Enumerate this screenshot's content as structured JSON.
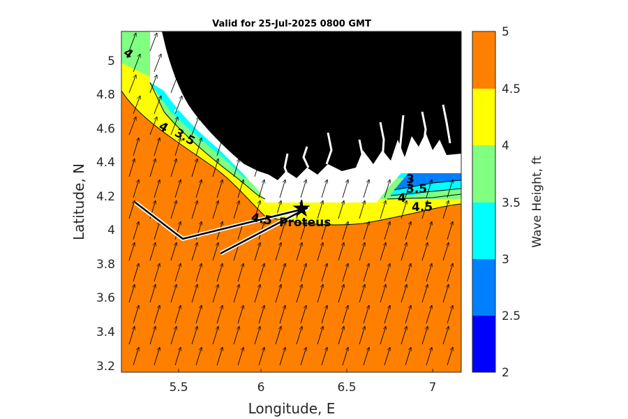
{
  "title": "Valid for 25-Jul-2025 0800 GMT",
  "xlabel": "Longitude, E",
  "ylabel": "Latitude, N",
  "colorbar_label": "Wave Height, ft",
  "x_ticks": [
    "5.5",
    "6",
    "6.5",
    "7"
  ],
  "y_ticks": [
    "5",
    "4.8",
    "4.6",
    "4.4",
    "4.2",
    "4",
    "3.8",
    "3.6",
    "3.4",
    "3.2"
  ],
  "colorbar_ticks": [
    "5",
    "4.5",
    "4",
    "3.5",
    "3",
    "2.5",
    "2"
  ],
  "colorbar_colors": [
    "#0000ff",
    "#0080ff",
    "#00ffff",
    "#80ff80",
    "#ffff00",
    "#ff8000"
  ],
  "station_label": "Proteus",
  "contour_labels": [
    "4",
    "4",
    "3.5",
    "4.5",
    "3",
    "3.5",
    "4",
    "4.5"
  ],
  "land_color": "#000000",
  "chart_data": {
    "type": "heatmap",
    "title": "Valid for 25-Jul-2025 0800 GMT",
    "xlabel": "Longitude, E",
    "ylabel": "Latitude, N",
    "xlim": [
      5.16,
      7.16
    ],
    "ylim": [
      3.17,
      5.17
    ],
    "colorbar": {
      "label": "Wave Height, ft",
      "range": [
        2,
        5
      ],
      "levels": [
        2,
        2.5,
        3,
        3.5,
        4,
        4.5,
        5
      ]
    },
    "station": {
      "name": "Proteus",
      "lon": 6.24,
      "lat": 4.11
    },
    "track": [
      [
        5.24,
        4.17
      ],
      [
        5.55,
        3.95
      ],
      [
        6.24,
        4.12
      ],
      [
        5.76,
        3.87
      ]
    ],
    "grid": false
  }
}
